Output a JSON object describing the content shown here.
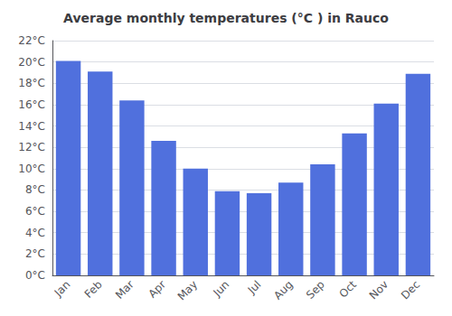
{
  "chart_data": {
    "type": "bar",
    "title": "Average monthly temperatures (°C ) in Rauco",
    "categories": [
      "Jan",
      "Feb",
      "Mar",
      "Apr",
      "May",
      "Jun",
      "Jul",
      "Aug",
      "Sep",
      "Oct",
      "Nov",
      "Dec"
    ],
    "values": [
      20.1,
      19.1,
      16.4,
      12.6,
      10.0,
      7.9,
      7.7,
      8.7,
      10.4,
      13.3,
      16.1,
      18.9
    ],
    "ylim": [
      0,
      22
    ],
    "yticks": [
      {
        "value": 0,
        "label": "0°C"
      },
      {
        "value": 2,
        "label": "2°C"
      },
      {
        "value": 4,
        "label": "4°C"
      },
      {
        "value": 6,
        "label": "6°C"
      },
      {
        "value": 8,
        "label": "8°C"
      },
      {
        "value": 10,
        "label": "10°C"
      },
      {
        "value": 12,
        "label": "12°C"
      },
      {
        "value": 14,
        "label": "14°C"
      },
      {
        "value": 16,
        "label": "16°C"
      },
      {
        "value": 18,
        "label": "18°C"
      },
      {
        "value": 20,
        "label": "20°C"
      },
      {
        "value": 22,
        "label": "22°C"
      }
    ],
    "grid": true
  }
}
